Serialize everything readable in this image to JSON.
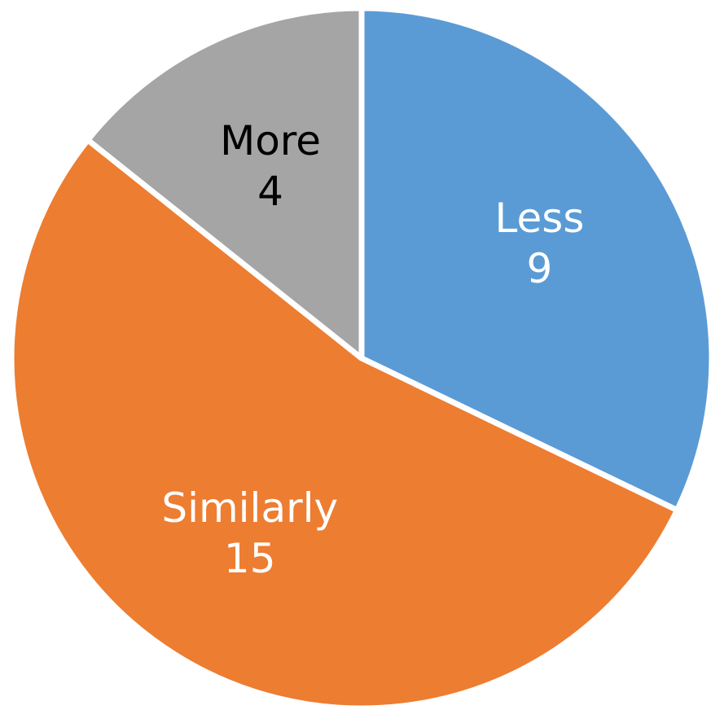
{
  "chart_data": {
    "type": "pie",
    "title": "",
    "categories": [
      "Less",
      "Similarly",
      "More"
    ],
    "values": [
      9,
      15,
      4
    ],
    "colors": [
      "#5b9bd5",
      "#ed7d31",
      "#a5a5a5"
    ],
    "label_colors": [
      "#ffffff",
      "#ffffff",
      "#000000"
    ],
    "start_angle_deg": 0,
    "direction": "clockwise",
    "legend": "none",
    "slice_separator_color": "#ffffff"
  }
}
